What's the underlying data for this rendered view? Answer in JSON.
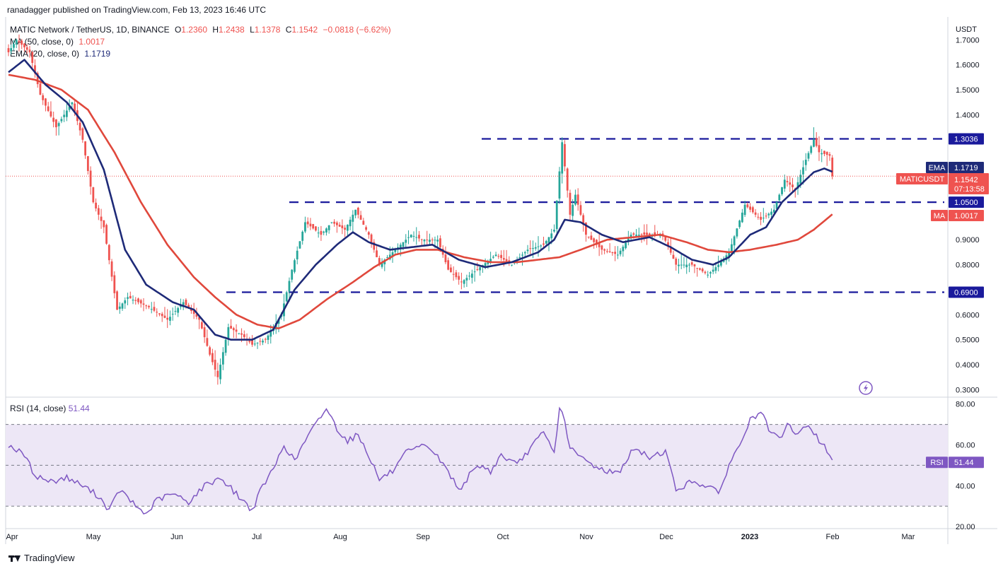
{
  "header": {
    "publisher": "ranadagger published on TradingView.com, Feb 13, 2023 16:46 UTC",
    "symbol": "MATIC Network / TetherUS, 1D, BINANCE",
    "ohlc": {
      "o_label": "O",
      "o": "1.2360",
      "h_label": "H",
      "h": "1.2438",
      "l_label": "L",
      "l": "1.1378",
      "c_label": "C",
      "c": "1.1542",
      "change": "−0.0818 (−6.62%)"
    },
    "ma_legend": {
      "label": "MA (50, close, 0)",
      "value": "1.0017"
    },
    "ema_legend": {
      "label": "EMA (20, close, 0)",
      "value": "1.1719"
    },
    "rsi_legend": {
      "label": "RSI (14, close)",
      "value": "51.44"
    }
  },
  "brand": "TradingView",
  "colors": {
    "up": "#26a69a",
    "down": "#ef5350",
    "ema": "#1e2a78",
    "ma": "#e0483c",
    "rsi": "#7e57c2",
    "level": "#1a1a9c",
    "rsiBand": "#ede7f6"
  },
  "chart_data": [
    {
      "type": "candlestick",
      "title": "MATIC Network / TetherUS, 1D, BINANCE",
      "y_unit": "USDT",
      "ylim": [
        0.27,
        1.78
      ],
      "y_ticks": [
        "1.7000",
        "1.6000",
        "1.5000",
        "1.4000",
        "1.3036",
        "1.1719",
        "1.1542",
        "1.0500",
        "1.0017",
        "0.9000",
        "0.8000",
        "0.6900",
        "0.6000",
        "0.5000",
        "0.4000",
        "0.3000"
      ],
      "x_ticks": [
        "Apr",
        "May",
        "Jun",
        "Jul",
        "Aug",
        "Sep",
        "Oct",
        "Nov",
        "Dec",
        "2023",
        "Feb",
        "Mar"
      ],
      "series": [
        {
          "name": "MATICUSDT",
          "kind": "close",
          "anchors_day_value": [
            [
              0,
              1.65
            ],
            [
              3,
              1.7
            ],
            [
              8,
              1.65
            ],
            [
              12,
              1.48
            ],
            [
              18,
              1.35
            ],
            [
              24,
              1.45
            ],
            [
              28,
              1.3
            ],
            [
              32,
              1.05
            ],
            [
              36,
              0.95
            ],
            [
              41,
              0.62
            ],
            [
              45,
              0.67
            ],
            [
              53,
              0.63
            ],
            [
              60,
              0.58
            ],
            [
              66,
              0.65
            ],
            [
              72,
              0.58
            ],
            [
              76,
              0.44
            ],
            [
              79,
              0.35
            ],
            [
              83,
              0.55
            ],
            [
              88,
              0.52
            ],
            [
              92,
              0.48
            ],
            [
              97,
              0.5
            ],
            [
              103,
              0.6
            ],
            [
              107,
              0.78
            ],
            [
              112,
              0.97
            ],
            [
              118,
              0.92
            ],
            [
              122,
              0.97
            ],
            [
              127,
              0.94
            ],
            [
              131,
              1.02
            ],
            [
              136,
              0.92
            ],
            [
              140,
              0.8
            ],
            [
              146,
              0.86
            ],
            [
              152,
              0.92
            ],
            [
              156,
              0.9
            ],
            [
              162,
              0.9
            ],
            [
              166,
              0.78
            ],
            [
              171,
              0.73
            ],
            [
              178,
              0.79
            ],
            [
              184,
              0.84
            ],
            [
              190,
              0.8
            ],
            [
              196,
              0.86
            ],
            [
              202,
              0.88
            ],
            [
              206,
              0.94
            ],
            [
              209,
              1.29
            ],
            [
              212,
              1.0
            ],
            [
              214,
              1.08
            ],
            [
              218,
              0.92
            ],
            [
              224,
              0.86
            ],
            [
              230,
              0.84
            ],
            [
              235,
              0.92
            ],
            [
              241,
              0.92
            ],
            [
              247,
              0.92
            ],
            [
              252,
              0.8
            ],
            [
              258,
              0.8
            ],
            [
              264,
              0.76
            ],
            [
              268,
              0.8
            ],
            [
              272,
              0.85
            ],
            [
              278,
              1.04
            ],
            [
              284,
              0.98
            ],
            [
              289,
              1.02
            ],
            [
              293,
              1.14
            ],
            [
              297,
              1.1
            ],
            [
              301,
              1.22
            ],
            [
              304,
              1.3
            ],
            [
              306,
              1.25
            ],
            [
              310,
              1.236
            ],
            [
              311,
              1.1542
            ]
          ]
        },
        {
          "name": "EMA",
          "value": "1.1719",
          "kind": "line",
          "anchors_day_value": [
            [
              0,
              1.57
            ],
            [
              6,
              1.62
            ],
            [
              14,
              1.52
            ],
            [
              22,
              1.45
            ],
            [
              28,
              1.37
            ],
            [
              36,
              1.18
            ],
            [
              44,
              0.86
            ],
            [
              52,
              0.72
            ],
            [
              62,
              0.65
            ],
            [
              70,
              0.62
            ],
            [
              78,
              0.52
            ],
            [
              84,
              0.5
            ],
            [
              92,
              0.5
            ],
            [
              100,
              0.54
            ],
            [
              108,
              0.7
            ],
            [
              116,
              0.8
            ],
            [
              124,
              0.88
            ],
            [
              130,
              0.93
            ],
            [
              136,
              0.89
            ],
            [
              144,
              0.86
            ],
            [
              152,
              0.87
            ],
            [
              160,
              0.88
            ],
            [
              170,
              0.82
            ],
            [
              180,
              0.79
            ],
            [
              190,
              0.81
            ],
            [
              200,
              0.85
            ],
            [
              206,
              0.9
            ],
            [
              210,
              0.98
            ],
            [
              216,
              0.97
            ],
            [
              224,
              0.92
            ],
            [
              232,
              0.89
            ],
            [
              242,
              0.91
            ],
            [
              250,
              0.87
            ],
            [
              258,
              0.82
            ],
            [
              266,
              0.8
            ],
            [
              272,
              0.83
            ],
            [
              280,
              0.92
            ],
            [
              286,
              0.95
            ],
            [
              292,
              1.05
            ],
            [
              298,
              1.11
            ],
            [
              304,
              1.17
            ],
            [
              308,
              1.185
            ],
            [
              311,
              1.1719
            ]
          ]
        },
        {
          "name": "MA",
          "value": "1.0017",
          "kind": "line",
          "anchors_day_value": [
            [
              0,
              1.56
            ],
            [
              10,
              1.54
            ],
            [
              20,
              1.5
            ],
            [
              30,
              1.42
            ],
            [
              40,
              1.25
            ],
            [
              50,
              1.05
            ],
            [
              60,
              0.88
            ],
            [
              70,
              0.75
            ],
            [
              78,
              0.67
            ],
            [
              86,
              0.6
            ],
            [
              94,
              0.56
            ],
            [
              102,
              0.545
            ],
            [
              110,
              0.58
            ],
            [
              120,
              0.66
            ],
            [
              130,
              0.73
            ],
            [
              138,
              0.79
            ],
            [
              146,
              0.84
            ],
            [
              154,
              0.86
            ],
            [
              162,
              0.86
            ],
            [
              172,
              0.83
            ],
            [
              182,
              0.81
            ],
            [
              192,
              0.81
            ],
            [
              200,
              0.82
            ],
            [
              208,
              0.83
            ],
            [
              216,
              0.86
            ],
            [
              226,
              0.9
            ],
            [
              236,
              0.91
            ],
            [
              246,
              0.92
            ],
            [
              256,
              0.89
            ],
            [
              264,
              0.86
            ],
            [
              272,
              0.85
            ],
            [
              280,
              0.86
            ],
            [
              290,
              0.88
            ],
            [
              298,
              0.9
            ],
            [
              304,
              0.94
            ],
            [
              311,
              1.0017
            ]
          ]
        }
      ],
      "levels": [
        "1.3036",
        "1.0500",
        "0.6900"
      ],
      "last_price_label": "MATICUSDT",
      "countdown": "07:13:58",
      "ema_tag": "EMA",
      "ma_tag": "MA"
    },
    {
      "type": "line",
      "title": "RSI (14, close)",
      "ylim": [
        19,
        83
      ],
      "y_ticks": [
        "80.00",
        "60.00",
        "40.00",
        "20.00"
      ],
      "bands": [
        70,
        50,
        30
      ],
      "series": [
        {
          "name": "RSI",
          "value": "51.44",
          "anchors_day_value": [
            [
              0,
              60
            ],
            [
              6,
              55
            ],
            [
              10,
              45
            ],
            [
              16,
              42
            ],
            [
              22,
              44
            ],
            [
              28,
              40
            ],
            [
              34,
              35
            ],
            [
              38,
              28
            ],
            [
              42,
              38
            ],
            [
              48,
              30
            ],
            [
              52,
              26
            ],
            [
              56,
              33
            ],
            [
              62,
              36
            ],
            [
              68,
              32
            ],
            [
              74,
              40
            ],
            [
              80,
              44
            ],
            [
              86,
              36
            ],
            [
              92,
              28
            ],
            [
              96,
              40
            ],
            [
              100,
              48
            ],
            [
              104,
              60
            ],
            [
              108,
              52
            ],
            [
              112,
              62
            ],
            [
              116,
              70
            ],
            [
              120,
              78
            ],
            [
              124,
              68
            ],
            [
              128,
              62
            ],
            [
              132,
              65
            ],
            [
              136,
              55
            ],
            [
              140,
              43
            ],
            [
              146,
              48
            ],
            [
              150,
              56
            ],
            [
              154,
              58
            ],
            [
              158,
              60
            ],
            [
              162,
              54
            ],
            [
              166,
              47
            ],
            [
              170,
              38
            ],
            [
              174,
              45
            ],
            [
              178,
              50
            ],
            [
              182,
              47
            ],
            [
              186,
              55
            ],
            [
              192,
              50
            ],
            [
              198,
              60
            ],
            [
              202,
              66
            ],
            [
              206,
              56
            ],
            [
              208,
              78
            ],
            [
              210,
              72
            ],
            [
              212,
              58
            ],
            [
              218,
              52
            ],
            [
              224,
              48
            ],
            [
              230,
              46
            ],
            [
              236,
              58
            ],
            [
              242,
              54
            ],
            [
              248,
              57
            ],
            [
              252,
              38
            ],
            [
              258,
              42
            ],
            [
              264,
              40
            ],
            [
              268,
              36
            ],
            [
              272,
              50
            ],
            [
              276,
              60
            ],
            [
              280,
              72
            ],
            [
              284,
              76
            ],
            [
              288,
              65
            ],
            [
              292,
              63
            ],
            [
              294,
              70
            ],
            [
              298,
              65
            ],
            [
              302,
              70
            ],
            [
              306,
              62
            ],
            [
              308,
              60
            ],
            [
              311,
              51.44
            ]
          ]
        }
      ]
    }
  ]
}
